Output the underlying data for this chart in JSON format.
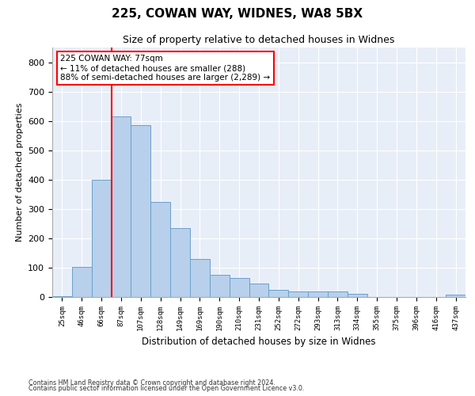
{
  "title": "225, COWAN WAY, WIDNES, WA8 5BX",
  "subtitle": "Size of property relative to detached houses in Widnes",
  "xlabel": "Distribution of detached houses by size in Widnes",
  "ylabel": "Number of detached properties",
  "footnote1": "Contains HM Land Registry data © Crown copyright and database right 2024.",
  "footnote2": "Contains public sector information licensed under the Open Government Licence v3.0.",
  "bar_labels": [
    "25sqm",
    "46sqm",
    "66sqm",
    "87sqm",
    "107sqm",
    "128sqm",
    "149sqm",
    "169sqm",
    "190sqm",
    "210sqm",
    "231sqm",
    "252sqm",
    "272sqm",
    "293sqm",
    "313sqm",
    "334sqm",
    "355sqm",
    "375sqm",
    "396sqm",
    "416sqm",
    "437sqm"
  ],
  "bar_values": [
    2,
    103,
    400,
    614,
    585,
    325,
    235,
    130,
    75,
    65,
    45,
    25,
    20,
    20,
    20,
    10,
    0,
    0,
    0,
    0,
    8
  ],
  "bar_color": "#b8d0eb",
  "bar_edgecolor": "#6aa0cc",
  "vline_x": 2.5,
  "vline_color": "red",
  "annotation_text": "225 COWAN WAY: 77sqm\n← 11% of detached houses are smaller (288)\n88% of semi-detached houses are larger (2,289) →",
  "annotation_box_color": "white",
  "annotation_box_edgecolor": "red",
  "ylim": [
    0,
    850
  ],
  "yticks": [
    0,
    100,
    200,
    300,
    400,
    500,
    600,
    700,
    800
  ],
  "plot_bg_color": "#e8eef8",
  "title_fontsize": 11,
  "subtitle_fontsize": 9,
  "ann_fontsize": 7.5
}
